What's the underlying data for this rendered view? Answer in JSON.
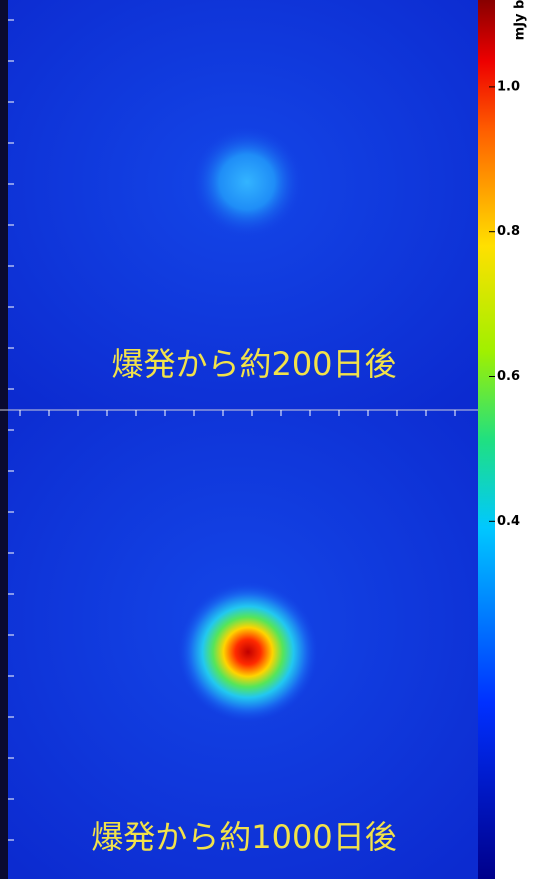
{
  "panels": [
    {
      "label": "爆発から約200日後"
    },
    {
      "label": "爆発から約1000日後"
    }
  ],
  "colorbar": {
    "unit_label": "mJy b",
    "range": [
      -0.094,
      1.12
    ],
    "ticks": [
      {
        "value": 1.0,
        "label": "1.0"
      },
      {
        "value": 0.8,
        "label": "0.8"
      },
      {
        "value": 0.6,
        "label": "0.6"
      },
      {
        "value": 0.4,
        "label": "0.4"
      }
    ]
  }
}
